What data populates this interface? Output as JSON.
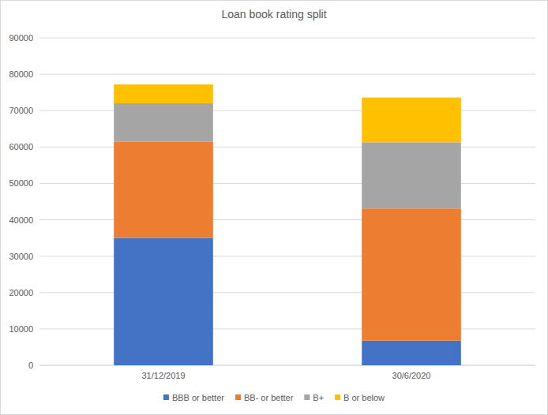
{
  "chart_data": {
    "type": "bar",
    "title": "Loan book rating split",
    "categories": [
      "31/12/2019",
      "30/6/2020"
    ],
    "series": [
      {
        "name": "BBB or better",
        "color": "#4472c4",
        "values": [
          35000,
          6800
        ]
      },
      {
        "name": "BB- or better",
        "color": "#ed7d31",
        "values": [
          26500,
          36300
        ]
      },
      {
        "name": "B+",
        "color": "#a5a5a5",
        "values": [
          10500,
          18200
        ]
      },
      {
        "name": "B or below",
        "color": "#ffc000",
        "values": [
          5200,
          12300
        ]
      }
    ],
    "ylim": [
      0,
      90000
    ],
    "yticks": [
      0,
      10000,
      20000,
      30000,
      40000,
      50000,
      60000,
      70000,
      80000,
      90000
    ],
    "stacked": true,
    "grid": true,
    "legend": "bottom"
  }
}
